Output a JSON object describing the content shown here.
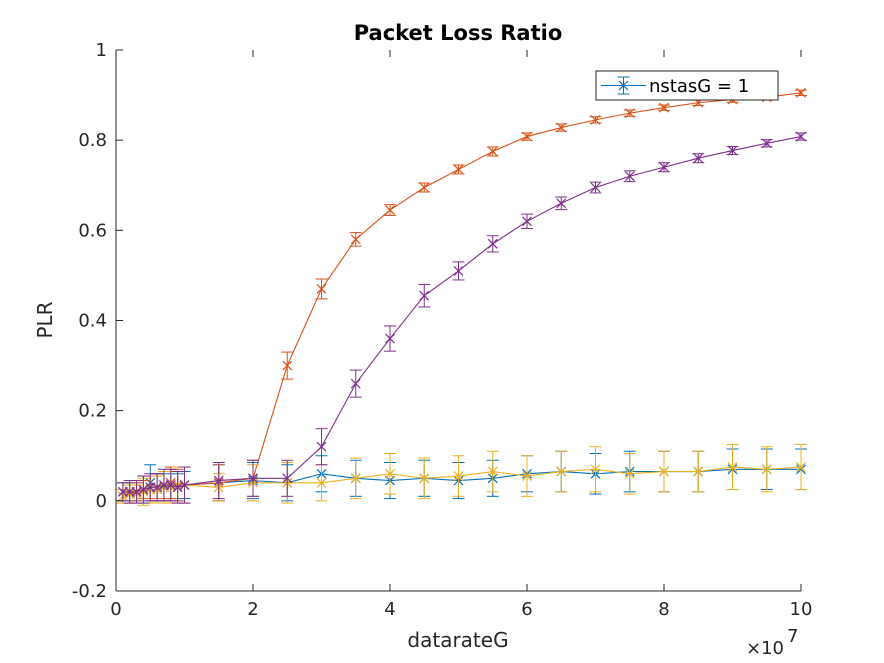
{
  "chart_data": {
    "type": "line",
    "title": "Packet Loss Ratio",
    "xlabel": "datarateG",
    "ylabel": "PLR",
    "x_exponent_label": "×10",
    "x_exponent_power": "7",
    "xlim": [
      0,
      100000000
    ],
    "ylim": [
      -0.2,
      1
    ],
    "x_ticks": [
      0,
      20000000,
      40000000,
      60000000,
      80000000,
      100000000
    ],
    "x_tick_labels": [
      "0",
      "2",
      "4",
      "6",
      "8",
      "10"
    ],
    "y_ticks": [
      -0.2,
      0,
      0.2,
      0.4,
      0.6,
      0.8,
      1
    ],
    "y_tick_labels": [
      "-0.2",
      "0",
      "0.2",
      "0.4",
      "0.6",
      "0.8",
      "1"
    ],
    "grid": false,
    "legend": {
      "placement": "top-right",
      "entries": [
        "nstasG = 1"
      ]
    },
    "x": [
      1000000,
      2000000,
      3000000,
      4000000,
      5000000,
      6000000,
      7000000,
      8000000,
      9000000,
      10000000,
      15000000,
      20000000,
      25000000,
      30000000,
      35000000,
      40000000,
      45000000,
      50000000,
      55000000,
      60000000,
      65000000,
      70000000,
      75000000,
      80000000,
      85000000,
      90000000,
      95000000,
      100000000
    ],
    "series": [
      {
        "name": "nstasG = 1",
        "color": "#0072BD",
        "values": [
          0.02,
          0.02,
          0.02,
          0.025,
          0.04,
          0.03,
          0.03,
          0.035,
          0.03,
          0.035,
          0.04,
          0.045,
          0.04,
          0.06,
          0.05,
          0.045,
          0.05,
          0.045,
          0.05,
          0.06,
          0.065,
          0.06,
          0.065,
          0.065,
          0.065,
          0.07,
          0.07,
          0.07
        ],
        "errors": [
          0.02,
          0.02,
          0.02,
          0.03,
          0.04,
          0.03,
          0.03,
          0.03,
          0.03,
          0.03,
          0.04,
          0.04,
          0.04,
          0.04,
          0.04,
          0.04,
          0.04,
          0.04,
          0.04,
          0.04,
          0.045,
          0.045,
          0.045,
          0.045,
          0.045,
          0.045,
          0.045,
          0.045
        ]
      },
      {
        "color": "#D95319",
        "values": [
          0.01,
          0.015,
          0.02,
          0.025,
          0.03,
          0.03,
          0.035,
          0.04,
          0.035,
          0.035,
          0.04,
          0.05,
          0.3,
          0.47,
          0.58,
          0.645,
          0.695,
          0.735,
          0.775,
          0.808,
          0.828,
          0.845,
          0.86,
          0.872,
          0.883,
          0.89,
          0.895,
          0.905
        ],
        "errors": [
          0.015,
          0.02,
          0.02,
          0.02,
          0.025,
          0.03,
          0.03,
          0.035,
          0.035,
          0.04,
          0.04,
          0.04,
          0.03,
          0.022,
          0.015,
          0.012,
          0.01,
          0.01,
          0.01,
          0.008,
          0.008,
          0.007,
          0.007,
          0.006,
          0.006,
          0.006,
          0.006,
          0.006
        ]
      },
      {
        "color": "#EDB120",
        "values": [
          0.01,
          0.015,
          0.015,
          0.02,
          0.025,
          0.025,
          0.03,
          0.03,
          0.035,
          0.035,
          0.03,
          0.04,
          0.04,
          0.04,
          0.05,
          0.06,
          0.05,
          0.055,
          0.065,
          0.055,
          0.065,
          0.07,
          0.06,
          0.065,
          0.065,
          0.075,
          0.07,
          0.075
        ],
        "errors": [
          0.015,
          0.02,
          0.02,
          0.03,
          0.03,
          0.03,
          0.035,
          0.035,
          0.04,
          0.04,
          0.03,
          0.04,
          0.045,
          0.04,
          0.045,
          0.045,
          0.045,
          0.045,
          0.045,
          0.045,
          0.045,
          0.05,
          0.045,
          0.045,
          0.045,
          0.05,
          0.05,
          0.05
        ]
      },
      {
        "color": "#7E2F8E",
        "values": [
          0.02,
          0.02,
          0.02,
          0.025,
          0.03,
          0.03,
          0.035,
          0.035,
          0.03,
          0.035,
          0.045,
          0.05,
          0.05,
          0.12,
          0.26,
          0.36,
          0.455,
          0.51,
          0.57,
          0.62,
          0.66,
          0.695,
          0.72,
          0.74,
          0.76,
          0.777,
          0.793,
          0.808
        ],
        "errors": [
          0.02,
          0.025,
          0.025,
          0.03,
          0.03,
          0.03,
          0.035,
          0.035,
          0.035,
          0.04,
          0.04,
          0.04,
          0.04,
          0.04,
          0.03,
          0.028,
          0.025,
          0.02,
          0.018,
          0.016,
          0.014,
          0.012,
          0.012,
          0.01,
          0.01,
          0.009,
          0.008,
          0.008
        ]
      }
    ]
  }
}
